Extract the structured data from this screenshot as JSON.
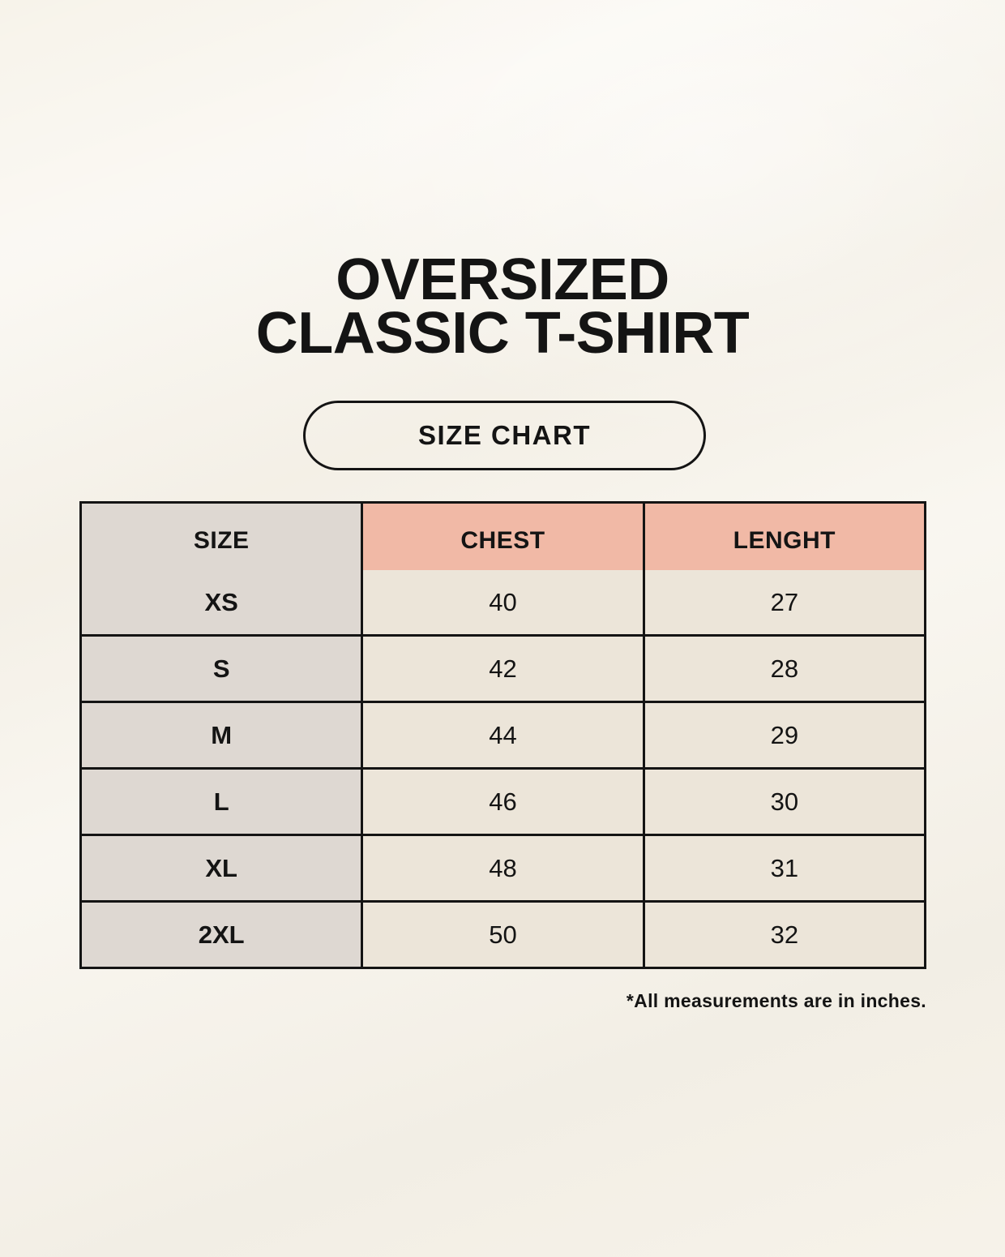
{
  "title": {
    "line1": "OVERSIZED",
    "line2": "CLASSIC T-SHIRT"
  },
  "size_chart_button": {
    "label": "SIZE CHART"
  },
  "table": {
    "headers": [
      "SIZE",
      "CHEST",
      "LENGHT"
    ],
    "rows": [
      {
        "size": "XS",
        "chest": "40",
        "length": "27"
      },
      {
        "size": "S",
        "chest": "42",
        "length": "28"
      },
      {
        "size": "M",
        "chest": "44",
        "length": "29"
      },
      {
        "size": "L",
        "chest": "46",
        "length": "30"
      },
      {
        "size": "XL",
        "chest": "48",
        "length": "31"
      },
      {
        "size": "2XL",
        "chest": "50",
        "length": "32"
      }
    ]
  },
  "footnote": "*All measurements are in inches.",
  "colors": {
    "background": "#f7f3ea",
    "header_accent": "#f1b9a6",
    "size_column": "#ded8d2",
    "data_cell": "#ece5d9",
    "border": "#141414",
    "text": "#141414"
  },
  "chart_data": {
    "type": "table",
    "title": "OVERSIZED CLASSIC T-SHIRT — SIZE CHART",
    "columns": [
      "SIZE",
      "CHEST",
      "LENGHT"
    ],
    "rows": [
      [
        "XS",
        40,
        27
      ],
      [
        "S",
        42,
        28
      ],
      [
        "M",
        44,
        29
      ],
      [
        "L",
        46,
        30
      ],
      [
        "XL",
        48,
        31
      ],
      [
        "2XL",
        50,
        32
      ]
    ],
    "units": "inches",
    "note": "*All measurements are in inches."
  }
}
